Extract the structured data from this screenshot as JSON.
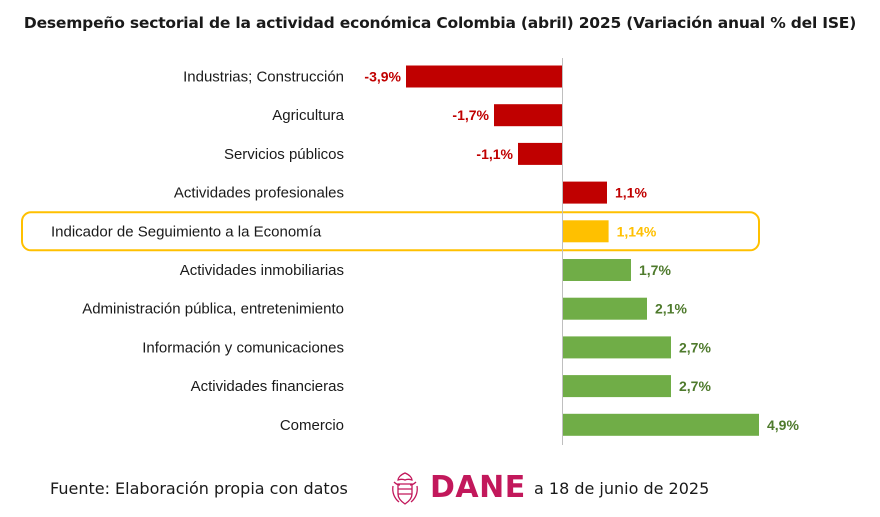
{
  "chart_data": {
    "type": "bar",
    "orientation": "horizontal",
    "title": "Desempeño sectorial de la actividad económica Colombia (abril) 2025 (Variación anual % del ISE)",
    "categories": [
      "Industrias; Construcción",
      "Agricultura",
      "Servicios públicos",
      "Actividades profesionales",
      "Indicador de Seguimiento a la Economía",
      "Actividades inmobiliarias",
      "Administración pública, entretenimiento",
      "Información y comunicaciones",
      "Actividades financieras",
      "Comercio"
    ],
    "values": [
      -3.9,
      -1.7,
      -1.1,
      1.1,
      1.14,
      1.7,
      2.1,
      2.7,
      2.7,
      4.9
    ],
    "value_labels": [
      "-3,9%",
      "-1,7%",
      "-1,1%",
      "1,1%",
      "1,14%",
      "1,7%",
      "2,1%",
      "2,7%",
      "2,7%",
      "4,9%"
    ],
    "bar_colors": [
      "#c00000",
      "#c00000",
      "#c00000",
      "#c00000",
      "#ffc000",
      "#70ad47",
      "#70ad47",
      "#70ad47",
      "#70ad47",
      "#70ad47"
    ],
    "label_colors": [
      "#c00000",
      "#c00000",
      "#c00000",
      "#c00000",
      "#ffc000",
      "#4e7a2c",
      "#4e7a2c",
      "#4e7a2c",
      "#4e7a2c",
      "#4e7a2c"
    ],
    "highlight_index": 4,
    "highlight_color": "#ffc000",
    "xlim": [
      -5.0,
      5.0
    ],
    "grid": false,
    "legend": "none"
  },
  "footer": {
    "source_text": "Fuente: Elaboración propia con datos",
    "logo_text": "DANE",
    "logo_color": "#c2185b",
    "date_text": "a 18 de junio de 2025"
  }
}
